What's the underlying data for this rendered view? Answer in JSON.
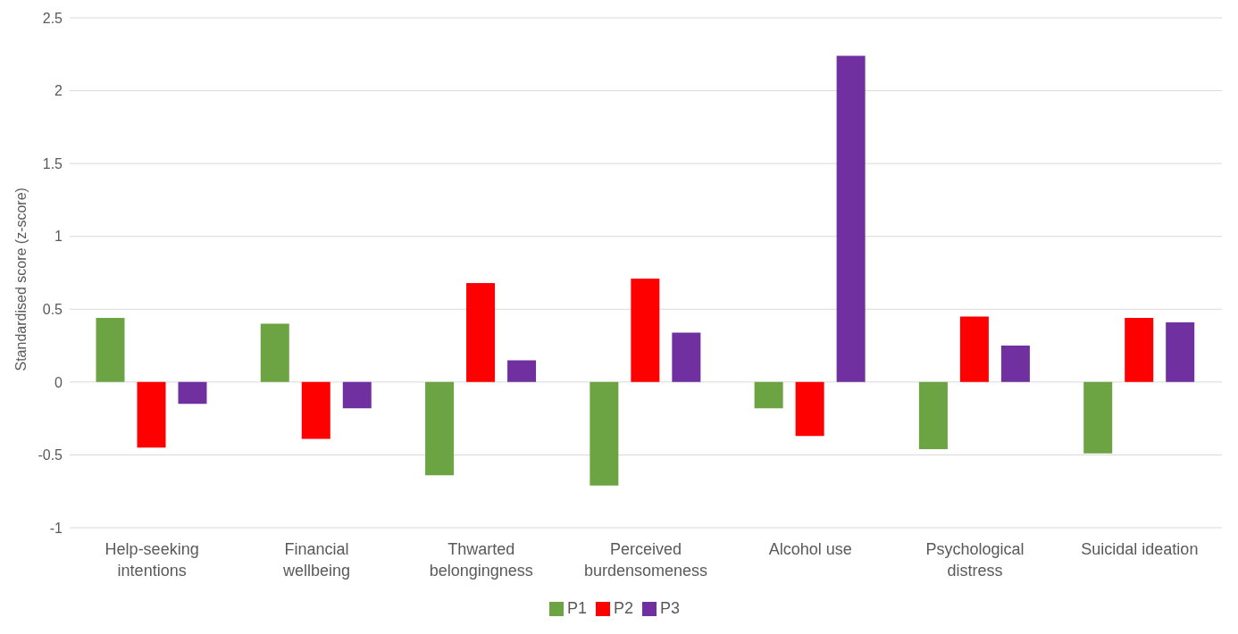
{
  "chart_data": {
    "type": "bar",
    "ylabel": "Standardised score (z-score)",
    "categories": [
      "Help-seeking intentions",
      "Financial wellbeing",
      "Thwarted belongingness",
      "Perceived burdensomeness",
      "Alcohol use",
      "Psychological distress",
      "Suicidal ideation"
    ],
    "series": [
      {
        "name": "P1",
        "color": "#6ca443",
        "values": [
          0.44,
          0.4,
          -0.64,
          -0.71,
          -0.18,
          -0.46,
          -0.49
        ]
      },
      {
        "name": "P2",
        "color": "#ff0000",
        "values": [
          -0.45,
          -0.39,
          0.68,
          0.71,
          -0.37,
          0.45,
          0.44
        ]
      },
      {
        "name": "P3",
        "color": "#7030a0",
        "values": [
          -0.15,
          -0.18,
          0.15,
          0.34,
          2.24,
          0.25,
          0.41
        ]
      }
    ],
    "ylim": [
      -1,
      2.5
    ],
    "yticks": [
      -1,
      -0.5,
      0,
      0.5,
      1,
      1.5,
      2,
      2.5
    ],
    "grid": "y",
    "legend": "bottom"
  }
}
